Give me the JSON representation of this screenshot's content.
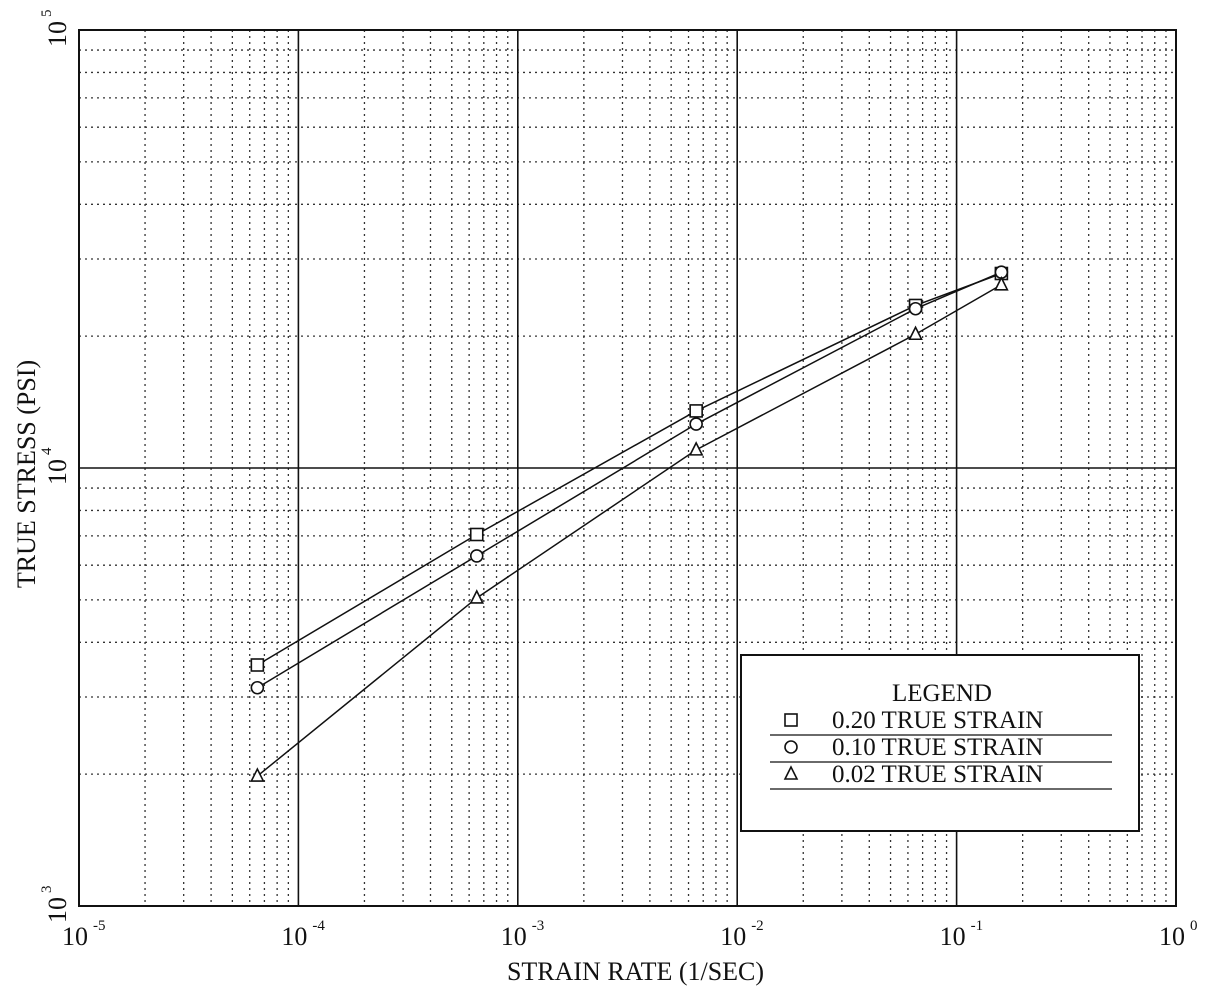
{
  "chart_data": {
    "type": "line",
    "xlabel": "STRAIN RATE (1/SEC)",
    "ylabel": "TRUE STRESS (PSI)",
    "x_scale": "log",
    "y_scale": "log",
    "xlim": [
      1e-05,
      1
    ],
    "ylim": [
      1000,
      100000
    ],
    "grid": true,
    "legend_position": "bottom-right",
    "x_ticks": [
      {
        "base": "10",
        "exp": "-5",
        "value": 1e-05
      },
      {
        "base": "10",
        "exp": "-4",
        "value": 0.0001
      },
      {
        "base": "10",
        "exp": "-3",
        "value": 0.001
      },
      {
        "base": "10",
        "exp": "-2",
        "value": 0.01
      },
      {
        "base": "10",
        "exp": "-1",
        "value": 0.1
      },
      {
        "base": "10",
        "exp": "0",
        "value": 1
      }
    ],
    "y_ticks": [
      {
        "base": "10",
        "exp": "3",
        "value": 1000
      },
      {
        "base": "10",
        "exp": "4",
        "value": 10000
      },
      {
        "base": "10",
        "exp": "5",
        "value": 100000
      }
    ],
    "legend": {
      "title": "LEGEND",
      "entries": [
        "0.20 TRUE STRAIN",
        "0.10 TRUE STRAIN",
        "0.02 TRUE STRAIN"
      ]
    },
    "series": [
      {
        "name": "0.20 TRUE STRAIN",
        "marker": "square",
        "x": [
          6.5e-05,
          0.00065,
          0.0065,
          0.065,
          0.16
        ],
        "y": [
          3550,
          7050,
          13500,
          23500,
          27800
        ]
      },
      {
        "name": "0.10 TRUE STRAIN",
        "marker": "circle",
        "x": [
          6.5e-05,
          0.00065,
          0.0065,
          0.065,
          0.16
        ],
        "y": [
          3150,
          6300,
          12600,
          23100,
          28000
        ]
      },
      {
        "name": "0.02 TRUE STRAIN",
        "marker": "triangle",
        "x": [
          6.5e-05,
          0.00065,
          0.0065,
          0.065,
          0.16
        ],
        "y": [
          1980,
          5050,
          11000,
          20200,
          26200
        ]
      }
    ]
  }
}
